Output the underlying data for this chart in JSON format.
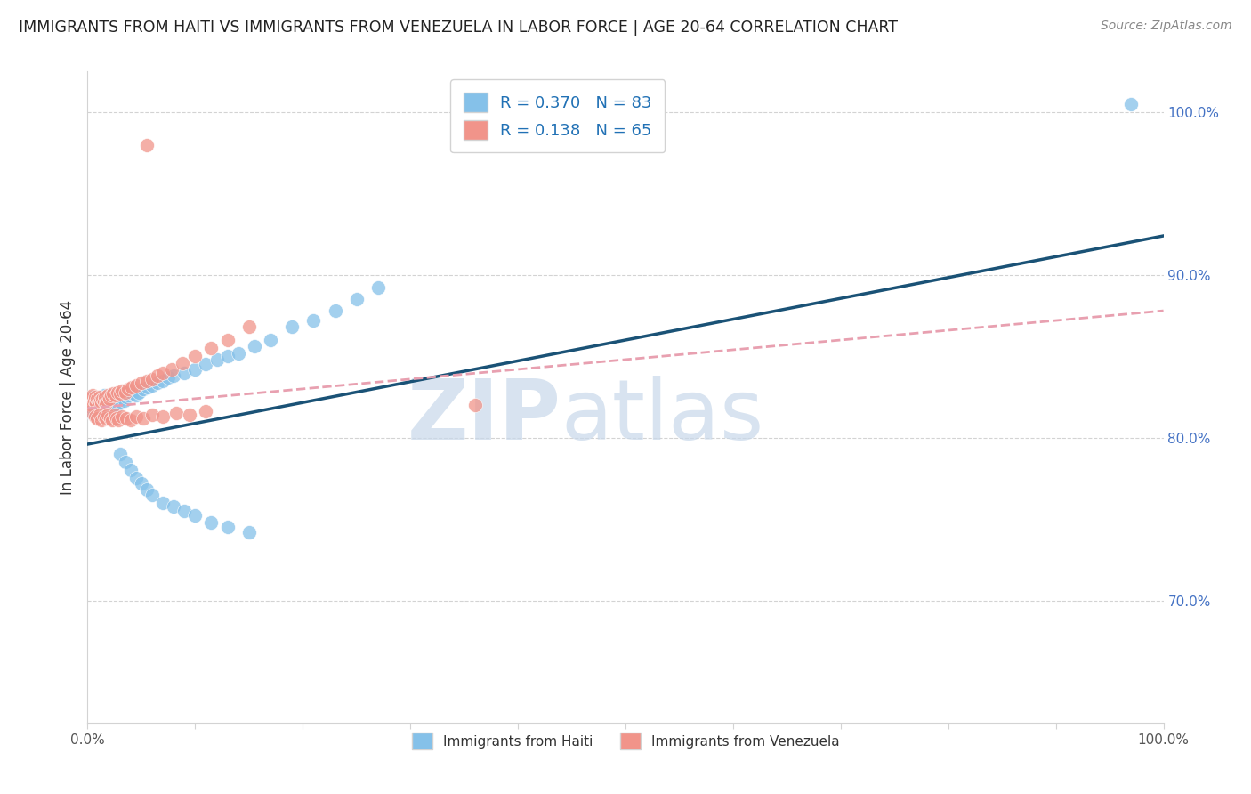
{
  "title": "IMMIGRANTS FROM HAITI VS IMMIGRANTS FROM VENEZUELA IN LABOR FORCE | AGE 20-64 CORRELATION CHART",
  "source": "Source: ZipAtlas.com",
  "ylabel": "In Labor Force | Age 20-64",
  "haiti_color": "#85C1E9",
  "venezuela_color": "#F1948A",
  "haiti_line_color": "#1A5276",
  "venezuela_line_color": "#E8A0B0",
  "haiti_R": 0.37,
  "haiti_N": 83,
  "venezuela_R": 0.138,
  "venezuela_N": 65,
  "xlim": [
    0.0,
    1.0
  ],
  "ylim": [
    0.625,
    1.025
  ],
  "right_yticks": [
    0.7,
    0.8,
    0.9,
    1.0
  ],
  "right_yticklabels": [
    "70.0%",
    "80.0%",
    "90.0%",
    "100.0%"
  ],
  "haiti_line_start_y": 0.796,
  "haiti_line_end_y": 0.924,
  "venezuela_line_start_y": 0.818,
  "venezuela_line_end_y": 0.878,
  "haiti_scatter_x": [
    0.002,
    0.003,
    0.004,
    0.005,
    0.005,
    0.006,
    0.006,
    0.007,
    0.007,
    0.008,
    0.008,
    0.009,
    0.009,
    0.01,
    0.01,
    0.011,
    0.011,
    0.012,
    0.012,
    0.013,
    0.013,
    0.014,
    0.014,
    0.015,
    0.015,
    0.016,
    0.016,
    0.017,
    0.018,
    0.019,
    0.02,
    0.021,
    0.022,
    0.023,
    0.024,
    0.025,
    0.026,
    0.027,
    0.028,
    0.03,
    0.032,
    0.034,
    0.036,
    0.038,
    0.04,
    0.042,
    0.045,
    0.048,
    0.052,
    0.056,
    0.06,
    0.065,
    0.07,
    0.075,
    0.08,
    0.09,
    0.1,
    0.11,
    0.12,
    0.13,
    0.14,
    0.155,
    0.17,
    0.19,
    0.21,
    0.23,
    0.25,
    0.27,
    0.03,
    0.035,
    0.04,
    0.045,
    0.05,
    0.055,
    0.06,
    0.07,
    0.08,
    0.09,
    0.1,
    0.115,
    0.13,
    0.15,
    0.97
  ],
  "haiti_scatter_y": [
    0.82,
    0.822,
    0.815,
    0.825,
    0.818,
    0.819,
    0.821,
    0.824,
    0.816,
    0.82,
    0.823,
    0.817,
    0.819,
    0.825,
    0.821,
    0.818,
    0.822,
    0.82,
    0.824,
    0.819,
    0.821,
    0.823,
    0.817,
    0.826,
    0.82,
    0.819,
    0.824,
    0.822,
    0.821,
    0.82,
    0.823,
    0.821,
    0.825,
    0.822,
    0.82,
    0.824,
    0.823,
    0.821,
    0.82,
    0.822,
    0.824,
    0.823,
    0.825,
    0.826,
    0.828,
    0.827,
    0.826,
    0.828,
    0.83,
    0.831,
    0.832,
    0.834,
    0.835,
    0.837,
    0.838,
    0.84,
    0.842,
    0.845,
    0.848,
    0.85,
    0.852,
    0.856,
    0.86,
    0.868,
    0.872,
    0.878,
    0.885,
    0.892,
    0.79,
    0.785,
    0.78,
    0.775,
    0.772,
    0.768,
    0.765,
    0.76,
    0.758,
    0.755,
    0.752,
    0.748,
    0.745,
    0.742,
    1.005
  ],
  "venezuela_scatter_x": [
    0.002,
    0.003,
    0.004,
    0.005,
    0.006,
    0.007,
    0.008,
    0.009,
    0.01,
    0.011,
    0.012,
    0.013,
    0.014,
    0.015,
    0.016,
    0.017,
    0.018,
    0.019,
    0.02,
    0.022,
    0.024,
    0.026,
    0.028,
    0.03,
    0.032,
    0.035,
    0.038,
    0.041,
    0.045,
    0.05,
    0.055,
    0.06,
    0.065,
    0.07,
    0.078,
    0.088,
    0.1,
    0.115,
    0.13,
    0.15,
    0.005,
    0.007,
    0.009,
    0.011,
    0.013,
    0.015,
    0.017,
    0.019,
    0.021,
    0.023,
    0.025,
    0.027,
    0.029,
    0.032,
    0.036,
    0.04,
    0.045,
    0.052,
    0.06,
    0.07,
    0.082,
    0.095,
    0.11,
    0.055,
    0.36
  ],
  "venezuela_scatter_y": [
    0.822,
    0.824,
    0.82,
    0.826,
    0.823,
    0.825,
    0.821,
    0.824,
    0.822,
    0.825,
    0.823,
    0.821,
    0.824,
    0.822,
    0.825,
    0.821,
    0.823,
    0.826,
    0.824,
    0.826,
    0.827,
    0.826,
    0.828,
    0.827,
    0.829,
    0.828,
    0.83,
    0.831,
    0.832,
    0.834,
    0.835,
    0.836,
    0.838,
    0.84,
    0.842,
    0.846,
    0.85,
    0.855,
    0.86,
    0.868,
    0.815,
    0.813,
    0.812,
    0.814,
    0.811,
    0.813,
    0.812,
    0.814,
    0.812,
    0.811,
    0.814,
    0.812,
    0.811,
    0.813,
    0.812,
    0.811,
    0.813,
    0.812,
    0.814,
    0.813,
    0.815,
    0.814,
    0.816,
    0.98,
    0.82
  ]
}
